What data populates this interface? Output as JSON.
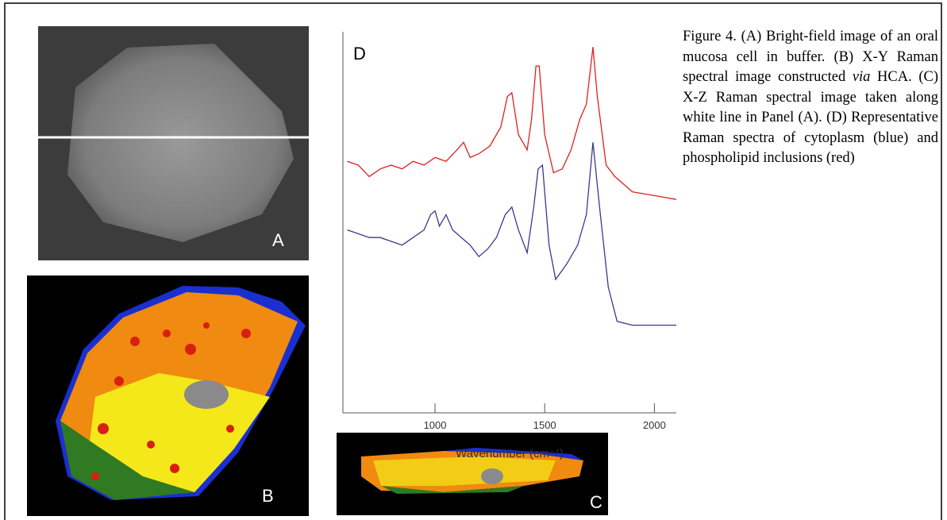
{
  "chart_data": {
    "type": "line",
    "panel_label": "D",
    "xlabel": "Wavenumber (cm⁻¹)",
    "xlim": [
      580,
      2100
    ],
    "xticks": [
      1000,
      1500,
      2000
    ],
    "ylim": [
      0,
      100
    ],
    "series": [
      {
        "color": "#e02020",
        "x": [
          600,
          650,
          700,
          750,
          800,
          850,
          900,
          950,
          1000,
          1050,
          1100,
          1130,
          1160,
          1200,
          1250,
          1300,
          1330,
          1350,
          1380,
          1420,
          1440,
          1460,
          1475,
          1500,
          1540,
          1580,
          1620,
          1660,
          1690,
          1720,
          1740,
          1780,
          1820,
          1900,
          2000,
          2100
        ],
        "values": [
          66,
          65,
          62,
          64,
          65,
          64,
          66,
          65,
          67,
          66,
          69,
          71,
          67,
          68,
          70,
          75,
          83,
          84,
          73,
          69,
          77,
          91,
          91,
          73,
          63,
          64,
          69,
          77,
          81,
          96,
          83,
          65,
          62,
          58,
          57,
          56
        ]
      },
      {
        "color": "#3a3a8c",
        "x": [
          600,
          650,
          700,
          750,
          800,
          850,
          900,
          950,
          980,
          1000,
          1020,
          1050,
          1080,
          1120,
          1160,
          1200,
          1240,
          1280,
          1320,
          1350,
          1380,
          1420,
          1450,
          1470,
          1490,
          1520,
          1550,
          1600,
          1650,
          1690,
          1720,
          1750,
          1790,
          1830,
          1900,
          2000,
          2100
        ],
        "values": [
          48,
          47,
          46,
          46,
          45,
          44,
          46,
          48,
          52,
          53,
          49,
          52,
          48,
          46,
          44,
          41,
          43,
          46,
          52,
          54,
          48,
          42,
          54,
          64,
          65,
          44,
          35,
          39,
          44,
          52,
          71,
          54,
          33,
          24,
          23,
          23,
          23
        ]
      }
    ]
  },
  "panels": {
    "a": "A",
    "b": "B",
    "c": "C"
  },
  "caption": [
    "Figure 4. (A) Bright-field image of an oral mucosa cell in buffer. (B) X-Y Raman spectral image constructed ",
    "via",
    " HCA. (C) X-Z Raman spectral image taken along white line in Panel (A). (D) Representative Raman spectra of cytoplasm (blue) and phospholipid inclusions (red)"
  ]
}
